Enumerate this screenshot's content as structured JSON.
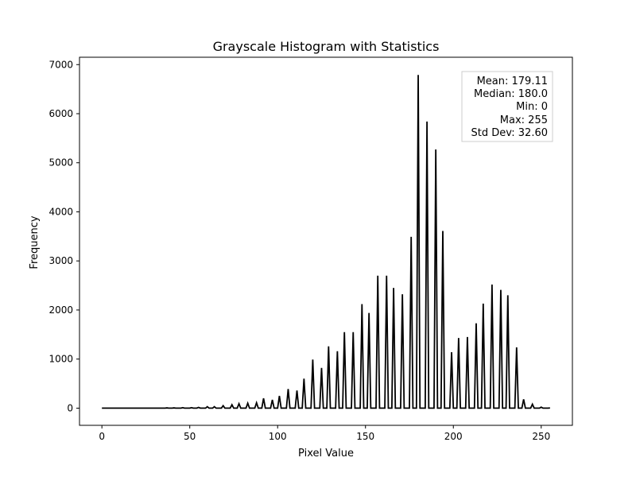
{
  "chart_data": {
    "type": "line",
    "title": "Grayscale Histogram with Statistics",
    "xlabel": "Pixel Value",
    "ylabel": "Frequency",
    "xlim": [
      -12.75,
      267.75
    ],
    "ylim": [
      -350,
      7150
    ],
    "xticks": [
      0,
      50,
      100,
      150,
      200,
      250
    ],
    "yticks": [
      0,
      1000,
      2000,
      3000,
      4000,
      5000,
      6000,
      7000
    ],
    "grid": false,
    "series_color": "#000000",
    "peaks": [
      {
        "x": 37,
        "y": 5
      },
      {
        "x": 41,
        "y": 5
      },
      {
        "x": 46,
        "y": 10
      },
      {
        "x": 51,
        "y": 10
      },
      {
        "x": 55,
        "y": 15
      },
      {
        "x": 60,
        "y": 30
      },
      {
        "x": 64,
        "y": 30
      },
      {
        "x": 69,
        "y": 50
      },
      {
        "x": 74,
        "y": 70
      },
      {
        "x": 78,
        "y": 90
      },
      {
        "x": 83,
        "y": 100
      },
      {
        "x": 88,
        "y": 110
      },
      {
        "x": 92,
        "y": 200
      },
      {
        "x": 97,
        "y": 170
      },
      {
        "x": 101,
        "y": 250
      },
      {
        "x": 106,
        "y": 390
      },
      {
        "x": 111,
        "y": 360
      },
      {
        "x": 115,
        "y": 600
      },
      {
        "x": 120,
        "y": 990
      },
      {
        "x": 125,
        "y": 820
      },
      {
        "x": 129,
        "y": 1260
      },
      {
        "x": 134,
        "y": 1160
      },
      {
        "x": 138,
        "y": 1550
      },
      {
        "x": 143,
        "y": 1550
      },
      {
        "x": 148,
        "y": 2120
      },
      {
        "x": 152,
        "y": 1940
      },
      {
        "x": 157,
        "y": 2700
      },
      {
        "x": 162,
        "y": 2700
      },
      {
        "x": 166,
        "y": 2450
      },
      {
        "x": 171,
        "y": 2320
      },
      {
        "x": 176,
        "y": 3490
      },
      {
        "x": 180,
        "y": 6790
      },
      {
        "x": 185,
        "y": 5840
      },
      {
        "x": 190,
        "y": 5270
      },
      {
        "x": 194,
        "y": 3610
      },
      {
        "x": 199,
        "y": 1140
      },
      {
        "x": 203,
        "y": 1430
      },
      {
        "x": 208,
        "y": 1450
      },
      {
        "x": 213,
        "y": 1730
      },
      {
        "x": 217,
        "y": 2130
      },
      {
        "x": 222,
        "y": 2520
      },
      {
        "x": 227,
        "y": 2410
      },
      {
        "x": 231,
        "y": 2300
      },
      {
        "x": 236,
        "y": 1240
      },
      {
        "x": 240,
        "y": 180
      },
      {
        "x": 245,
        "y": 80
      },
      {
        "x": 250,
        "y": 20
      },
      {
        "x": 255,
        "y": 5
      }
    ]
  },
  "stats_box": {
    "lines": [
      "Mean: 179.11",
      "Median: 180.0",
      "Min: 0",
      "Max: 255",
      "Std Dev: 32.60"
    ]
  }
}
